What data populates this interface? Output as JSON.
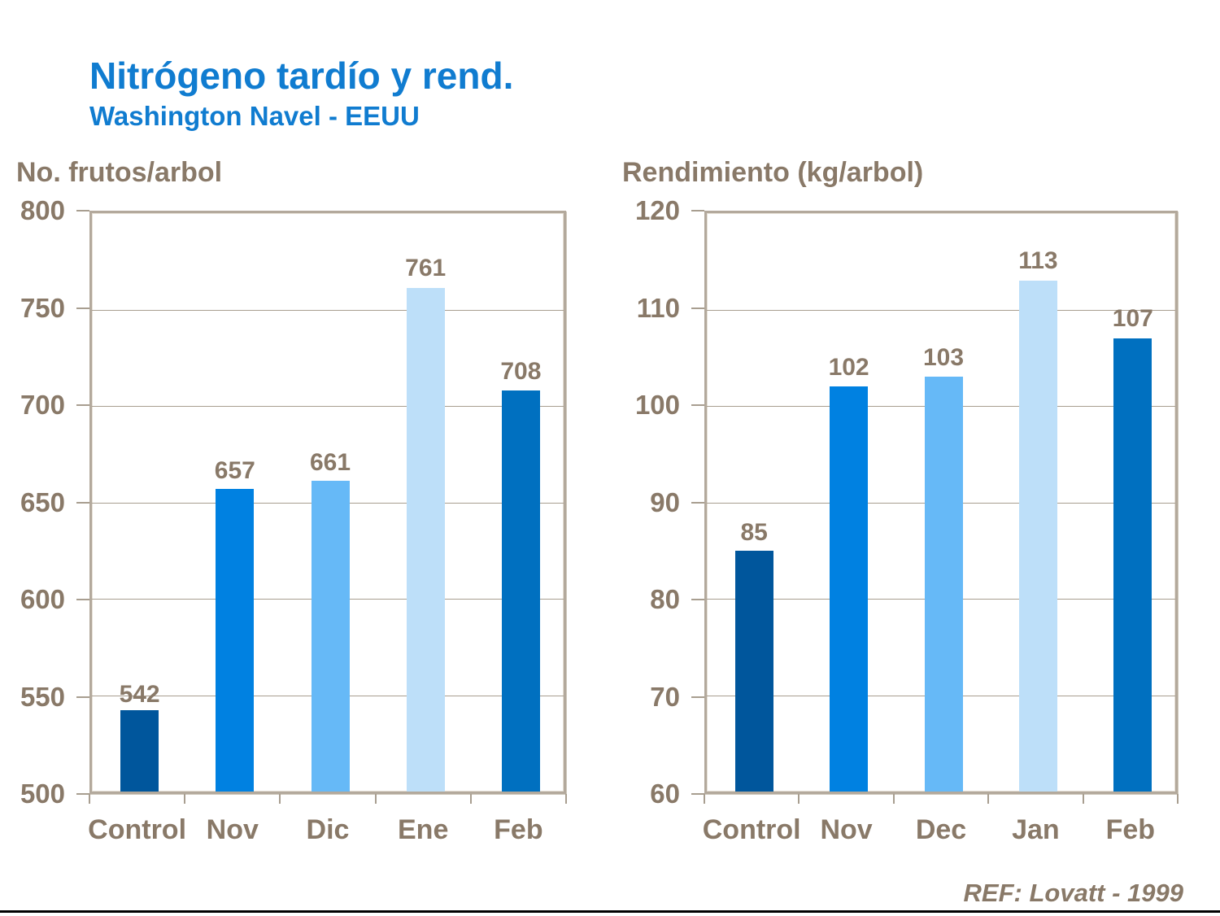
{
  "slide": {
    "title": "Nitrógeno tardío y rend.",
    "subtitle": "Washington Navel - EEUU",
    "footer_ref": "REF: Lovatt - 1999"
  },
  "colors": {
    "title_blue": "#107CD0",
    "axis_text_brown": "#897968",
    "gridline": "#a89e90",
    "plot_border": "#b3a99c",
    "bottom_border_line": "#000000",
    "bar_control": "#00569C",
    "bar_bright_blue": "#0081E1",
    "bar_light_blue": "#66B9F7",
    "bar_pale_blue": "#BDDFF9",
    "bar_medium_blue": "#0070C0"
  },
  "chart_data": [
    {
      "type": "bar",
      "title": "No. frutos/arbol",
      "categories": [
        "Control",
        "Nov",
        "Dic",
        "Ene",
        "Feb"
      ],
      "values": [
        542,
        657,
        661,
        761,
        708
      ],
      "data_labels": [
        542,
        657,
        661,
        761,
        708
      ],
      "bar_colors": [
        "#00569C",
        "#0081E1",
        "#66B9F7",
        "#BDDFF9",
        "#0070C0"
      ],
      "ylim": [
        500,
        800
      ],
      "yticks": [
        500,
        550,
        600,
        650,
        700,
        750,
        800
      ],
      "grid": true,
      "legend": "none",
      "xlabel": "",
      "ylabel": "No. frutos/arbol"
    },
    {
      "type": "bar",
      "title": "Rendimiento (kg/arbol)",
      "categories": [
        "Control",
        "Nov",
        "Dec",
        "Jan",
        "Feb"
      ],
      "values": [
        85,
        102,
        103,
        113,
        107
      ],
      "data_labels": [
        85,
        102,
        103,
        113,
        107
      ],
      "bar_colors": [
        "#00569C",
        "#0081E1",
        "#66B9F7",
        "#BDDFF9",
        "#0070C0"
      ],
      "ylim": [
        60,
        120
      ],
      "yticks": [
        60,
        70,
        80,
        90,
        100,
        110,
        120
      ],
      "grid": true,
      "legend": "none",
      "xlabel": "",
      "ylabel": "Rendimiento (kg/arbol)"
    }
  ]
}
